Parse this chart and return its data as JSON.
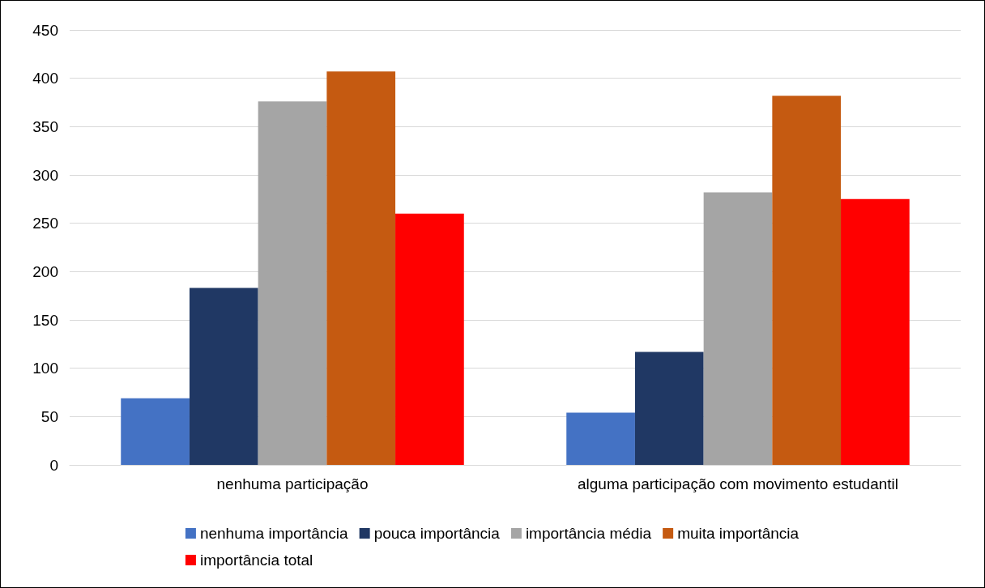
{
  "chart_data": {
    "type": "bar",
    "categories": [
      "nenhuma participação",
      "alguma participação com movimento estudantil"
    ],
    "series": [
      {
        "name": "nenhuma importância",
        "color": "#4472c4",
        "values": [
          69,
          54
        ]
      },
      {
        "name": "pouca importância",
        "color": "#203864",
        "values": [
          183,
          117
        ]
      },
      {
        "name": "importância média",
        "color": "#a5a5a5",
        "values": [
          376,
          282
        ]
      },
      {
        "name": "muita importância",
        "color": "#c55a11",
        "values": [
          407,
          382
        ]
      },
      {
        "name": "importância total",
        "color": "#ff0000",
        "values": [
          260,
          275
        ]
      }
    ],
    "ylim": [
      0,
      450
    ],
    "yticks": [
      0,
      50,
      100,
      150,
      200,
      250,
      300,
      350,
      400,
      450
    ],
    "grid": "y",
    "legend": "bottom"
  }
}
